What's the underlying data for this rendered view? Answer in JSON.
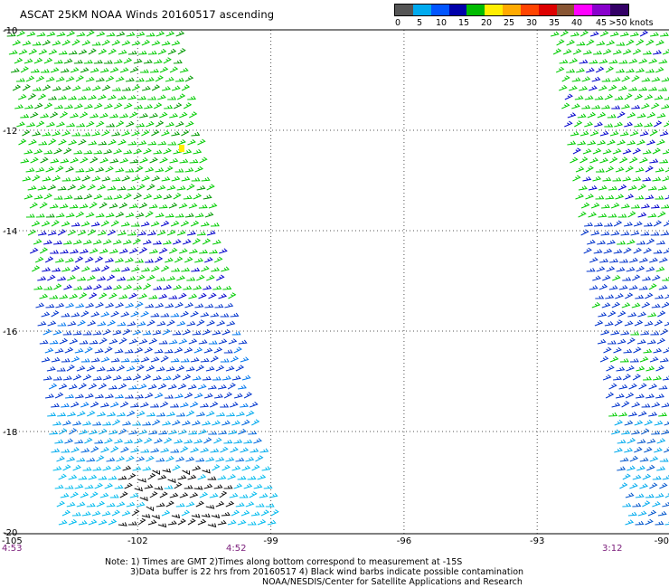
{
  "header": {
    "title": "ASCAT 25KM NOAA Winds 20160517 ascending"
  },
  "legend": {
    "colors": [
      "#555555",
      "#00aaee",
      "#0055ff",
      "#0000aa",
      "#00bb00",
      "#ffee00",
      "#ffaa00",
      "#ff4400",
      "#dd0000",
      "#885533",
      "#ff00ff",
      "#8800cc",
      "#330066"
    ],
    "ticks": [
      "0",
      "5",
      "10",
      "15",
      "20",
      "25",
      "30",
      "35",
      "40",
      "45",
      ">50 knots"
    ]
  },
  "axes": {
    "lat_labels": [
      "-10",
      "-12",
      "-14",
      "-16",
      "-18",
      "-20"
    ],
    "lon_labels": [
      "-105",
      "-102",
      "-99",
      "-96",
      "-93",
      "-90"
    ]
  },
  "times": [
    "4:53",
    "4:52",
    "3:12"
  ],
  "notes": {
    "line1": "Note: 1) Times are GMT 2)Times along bottom correspond to measurement at -15S",
    "line2": "3)Data buffer is 22 hrs from 20160517 4) Black wind barbs indicate possible contamination",
    "line3": "NOAA/NESDIS/Center for Satellite Applications and Research"
  }
}
